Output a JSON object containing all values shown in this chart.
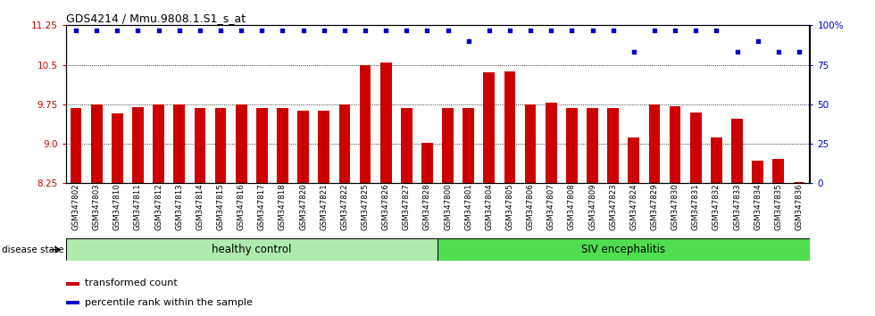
{
  "title": "GDS4214 / Mmu.9808.1.S1_s_at",
  "samples": [
    "GSM347802",
    "GSM347803",
    "GSM347810",
    "GSM347811",
    "GSM347812",
    "GSM347813",
    "GSM347814",
    "GSM347815",
    "GSM347816",
    "GSM347817",
    "GSM347818",
    "GSM347820",
    "GSM347821",
    "GSM347822",
    "GSM347825",
    "GSM347826",
    "GSM347827",
    "GSM347828",
    "GSM347800",
    "GSM347801",
    "GSM347804",
    "GSM347805",
    "GSM347806",
    "GSM347807",
    "GSM347808",
    "GSM347809",
    "GSM347823",
    "GSM347824",
    "GSM347829",
    "GSM347830",
    "GSM347831",
    "GSM347832",
    "GSM347833",
    "GSM347834",
    "GSM347835",
    "GSM347836"
  ],
  "bar_values": [
    9.68,
    9.75,
    9.57,
    9.7,
    9.75,
    9.75,
    9.68,
    9.68,
    9.75,
    9.68,
    9.68,
    9.62,
    9.62,
    9.75,
    10.5,
    10.55,
    9.68,
    9.02,
    9.68,
    9.68,
    10.35,
    10.38,
    9.75,
    9.78,
    9.68,
    9.68,
    9.68,
    9.12,
    9.75,
    9.72,
    9.6,
    9.12,
    9.48,
    8.68,
    8.72,
    8.28
  ],
  "percentile_values": [
    97,
    97,
    97,
    97,
    97,
    97,
    97,
    97,
    97,
    97,
    97,
    97,
    97,
    97,
    97,
    97,
    97,
    97,
    97,
    90,
    97,
    97,
    97,
    97,
    97,
    97,
    97,
    83,
    97,
    97,
    97,
    97,
    83,
    90,
    83,
    83
  ],
  "ylim_left": [
    8.25,
    11.25
  ],
  "ylim_right": [
    0,
    100
  ],
  "yticks_left": [
    8.25,
    9.0,
    9.75,
    10.5,
    11.25
  ],
  "yticks_right": [
    0,
    25,
    50,
    75,
    100
  ],
  "bar_color": "#CC0000",
  "dot_color": "#0000CC",
  "healthy_control_count": 18,
  "group1_label": "healthy control",
  "group2_label": "SIV encephalitis",
  "legend_bar_label": "transformed count",
  "legend_dot_label": "percentile rank within the sample",
  "disease_state_label": "disease state",
  "group1_color": "#AEEAAE",
  "group2_color": "#50DD50",
  "background_color": "#FFFFFF"
}
